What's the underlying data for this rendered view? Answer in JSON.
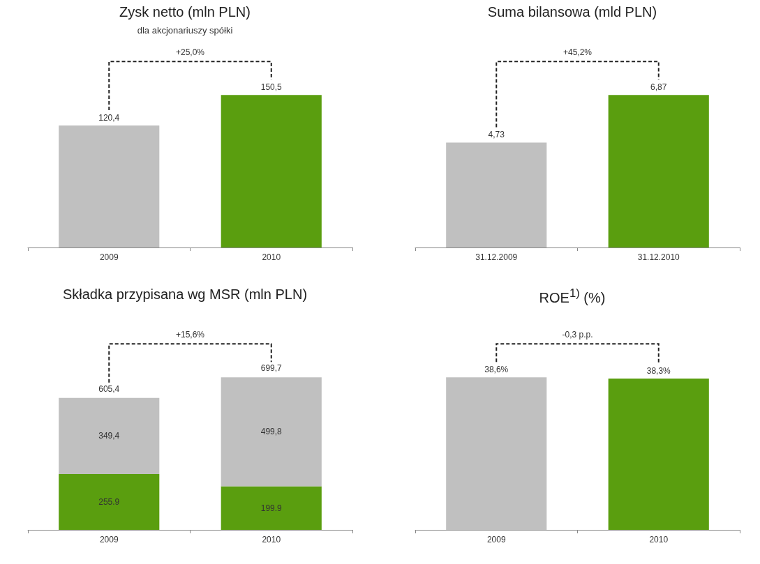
{
  "chart_data": [
    {
      "type": "bar",
      "title": "Zysk netto (mln PLN)",
      "subtitle": "dla akcjonariuszy spółki",
      "categories": [
        "2009",
        "2010"
      ],
      "values": [
        120.4,
        150.5
      ],
      "colors": [
        "#c0c0c0",
        "#5a9e0f"
      ],
      "value_labels": [
        "120,4",
        "150,5"
      ],
      "annotations": [
        "+25,0%"
      ]
    },
    {
      "type": "bar",
      "title": "Suma bilansowa (mld PLN)",
      "categories": [
        "31.12.2009",
        "31.12.2010"
      ],
      "values": [
        4.73,
        6.87
      ],
      "colors": [
        "#c0c0c0",
        "#5a9e0f"
      ],
      "value_labels": [
        "4,73",
        "6,87"
      ],
      "annotations": [
        "+45,2%"
      ]
    },
    {
      "type": "bar",
      "title": "Składka przypisana wg MSR (mln PLN)",
      "categories": [
        "2009",
        "2010"
      ],
      "stacked": true,
      "series": [
        {
          "color": "#5a9e0f",
          "values": [
            255.9,
            199.9
          ],
          "value_labels": [
            "255.9",
            "199.9"
          ]
        },
        {
          "color": "#c0c0c0",
          "values": [
            349.4,
            499.8
          ],
          "value_labels": [
            "349,4",
            "499,8"
          ]
        }
      ],
      "totals": [
        "605,4",
        "699,7"
      ],
      "annotations": [
        "+15,6%"
      ]
    },
    {
      "type": "bar",
      "title": "ROE$^{1)}$ (%)",
      "categories": [
        "2009",
        "2010"
      ],
      "values": [
        38.6,
        38.3
      ],
      "colors": [
        "#c0c0c0",
        "#5a9e0f"
      ],
      "value_labels": [
        "38,6%",
        "38,3%"
      ],
      "annotations": [
        "-0,3 p.p."
      ]
    }
  ]
}
